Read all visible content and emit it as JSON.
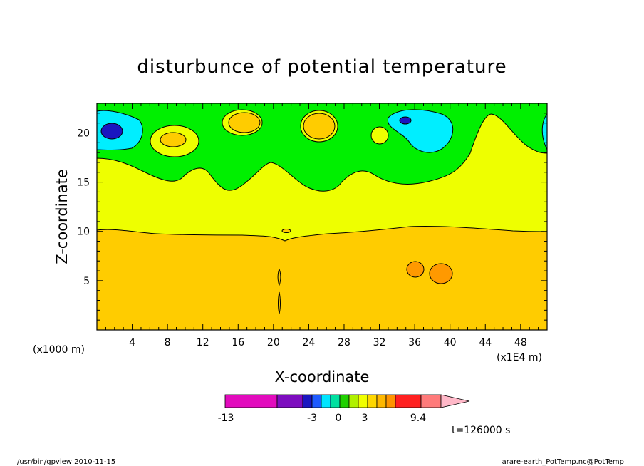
{
  "chart_data": {
    "type": "heatmap",
    "title": "disturbunce of potential temperature",
    "xlabel": "X-coordinate",
    "ylabel": "Z-coordinate",
    "x_unit": "(x1E4 m)",
    "y_unit": "(x1000 m)",
    "xlim": [
      0,
      51
    ],
    "ylim": [
      0,
      23
    ],
    "x_ticks": [
      "4",
      "8",
      "12",
      "16",
      "20",
      "24",
      "28",
      "32",
      "36",
      "40",
      "44",
      "48"
    ],
    "x_tick_values": [
      4,
      8,
      12,
      16,
      20,
      24,
      28,
      32,
      36,
      40,
      44,
      48
    ],
    "y_ticks": [
      "5",
      "10",
      "15",
      "20"
    ],
    "y_tick_values": [
      5,
      10,
      15,
      20
    ],
    "colorbar": {
      "labels": [
        "-13",
        "-3",
        "0",
        "3",
        "9.4"
      ],
      "label_values": [
        -13,
        -3,
        0,
        3,
        9.4
      ],
      "colors": [
        "#e20bbd",
        "#7d0dbf",
        "#1a16c0",
        "#1e5bff",
        "#00e5ff",
        "#00e0a0",
        "#20d000",
        "#b0f000",
        "#f0ff00",
        "#ffd700",
        "#ffb800",
        "#ff9400",
        "#ff2020",
        "#ff7a7a",
        "#ffb8c8"
      ]
    },
    "regions": {
      "lower_layer": {
        "z_range": [
          0,
          10
        ],
        "color": "#ffcc00",
        "approx_value": 3.5
      },
      "middle_layer": {
        "z_range": [
          10,
          17
        ],
        "color": "#eeff00",
        "approx_value": 2
      },
      "upper_layer": {
        "z_range": [
          17,
          23
        ],
        "color": "#00f000",
        "approx_value": 1
      },
      "negative_cells": [
        {
          "x": 1.7,
          "z": 20
        },
        {
          "x": 35,
          "z": 21.2
        }
      ],
      "positive_cells": [
        {
          "x": 36.2,
          "z": 6.2
        },
        {
          "x": 39,
          "z": 5.8
        }
      ]
    },
    "time_label": "t=126000 s"
  },
  "footer": {
    "left": "/usr/bin/gpview  2010-11-15",
    "right": "arare-earth_PotTemp.nc@PotTemp"
  },
  "colors": {
    "orange": "#ffcc00",
    "yellow": "#eeff00",
    "green": "#00f000",
    "cyan": "#00eeff",
    "blue": "#1a16c0",
    "dark_orange": "#ff9900"
  }
}
